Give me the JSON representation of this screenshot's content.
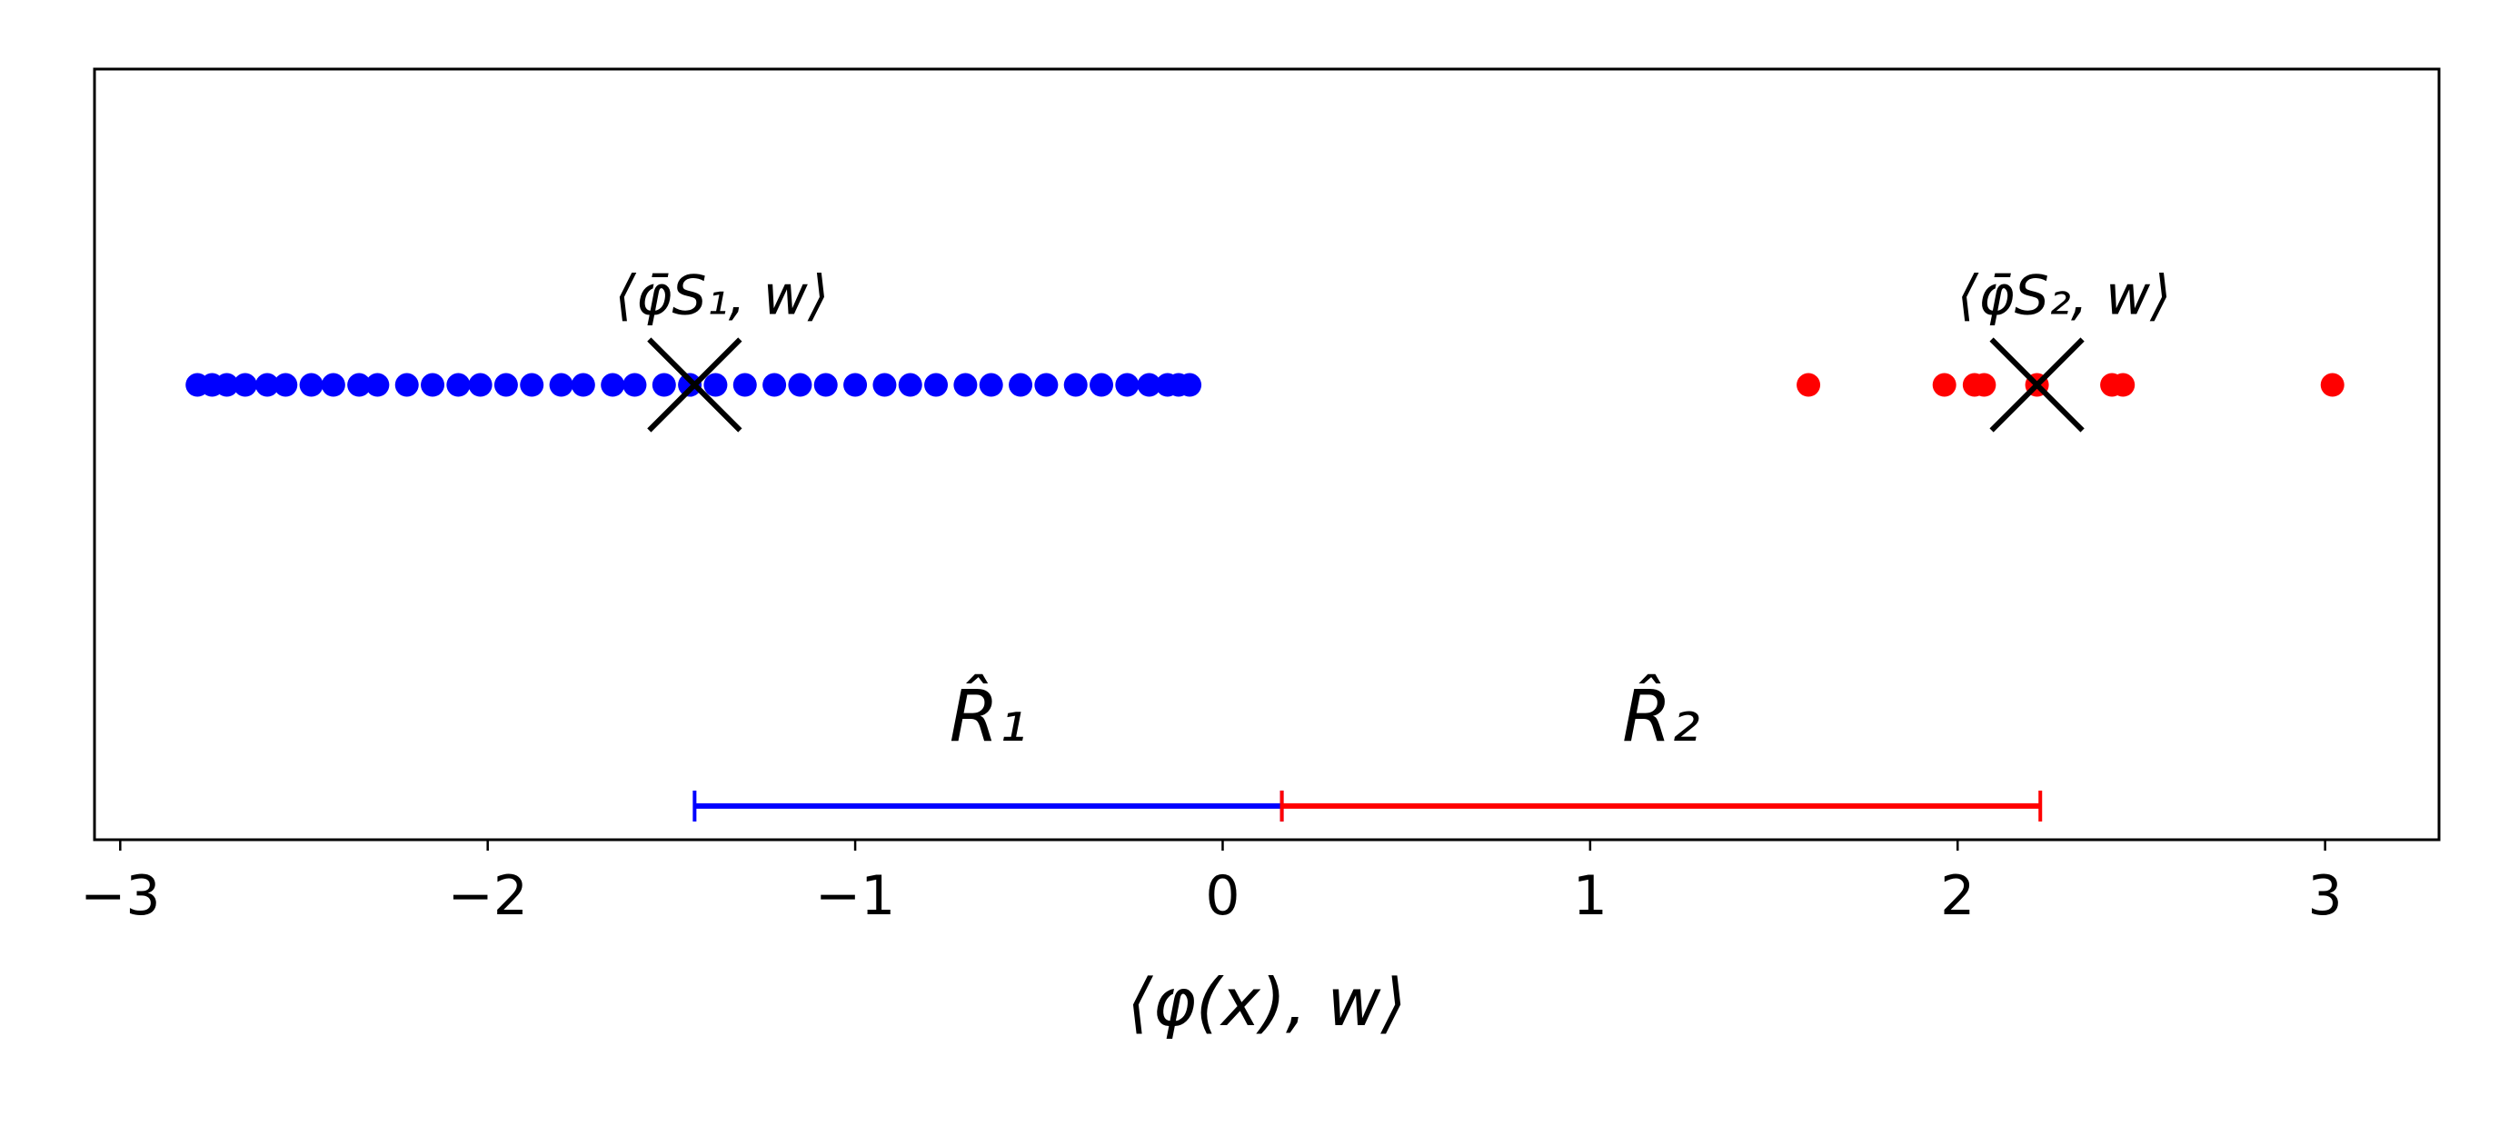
{
  "chart_data": {
    "type": "scatter",
    "xlabel": "⟨φ(x), w⟩",
    "xlim": [
      -3.07,
      3.31
    ],
    "ylim": [
      -0.08,
      1.75
    ],
    "xticks": [
      {
        "value": -3,
        "label": "−3"
      },
      {
        "value": -2,
        "label": "−2"
      },
      {
        "value": -1,
        "label": "−1"
      },
      0,
      1,
      2,
      3
    ],
    "series": [
      {
        "color": "#0000ff",
        "x": [
          -2.79,
          -2.75,
          -2.71,
          -2.66,
          -2.6,
          -2.55,
          -2.48,
          -2.42,
          -2.35,
          -2.3,
          -2.22,
          -2.15,
          -2.08,
          -2.02,
          -1.95,
          -1.88,
          -1.8,
          -1.74,
          -1.66,
          -1.6,
          -1.52,
          -1.45,
          -1.38,
          -1.3,
          -1.22,
          -1.15,
          -1.08,
          -1.0,
          -0.92,
          -0.85,
          -0.78,
          -0.7,
          -0.63,
          -0.55,
          -0.48,
          -0.4,
          -0.33,
          -0.26,
          -0.2,
          -0.15,
          -0.12,
          -0.09
        ],
        "y": [
          1,
          1,
          1,
          1,
          1,
          1,
          1,
          1,
          1,
          1,
          1,
          1,
          1,
          1,
          1,
          1,
          1,
          1,
          1,
          1,
          1,
          1,
          1,
          1,
          1,
          1,
          1,
          1,
          1,
          1,
          1,
          1,
          1,
          1,
          1,
          1,
          1,
          1,
          1,
          1,
          1,
          1
        ]
      },
      {
        "color": "#ff0000",
        "x": [
          1.594,
          1.964,
          2.046,
          2.072,
          2.216,
          2.42,
          2.45,
          3.02
        ],
        "y": [
          1,
          1,
          1,
          1,
          1,
          1,
          1,
          1
        ]
      }
    ],
    "markers": [
      {
        "label": "⟨φ̄S₁, w⟩",
        "x": -1.437,
        "y": 1,
        "color": "#000000"
      },
      {
        "label": "⟨φ̄S₂, w⟩",
        "x": 2.216,
        "y": 1,
        "color": "#000000"
      }
    ],
    "intervals": [
      {
        "label": "R̂₁",
        "start": -1.437,
        "end": 0.161,
        "y": 0,
        "color": "#0000ff"
      },
      {
        "label": "R̂₂",
        "start": 0.161,
        "end": 2.225,
        "y": 0,
        "color": "#ff0000"
      }
    ]
  }
}
